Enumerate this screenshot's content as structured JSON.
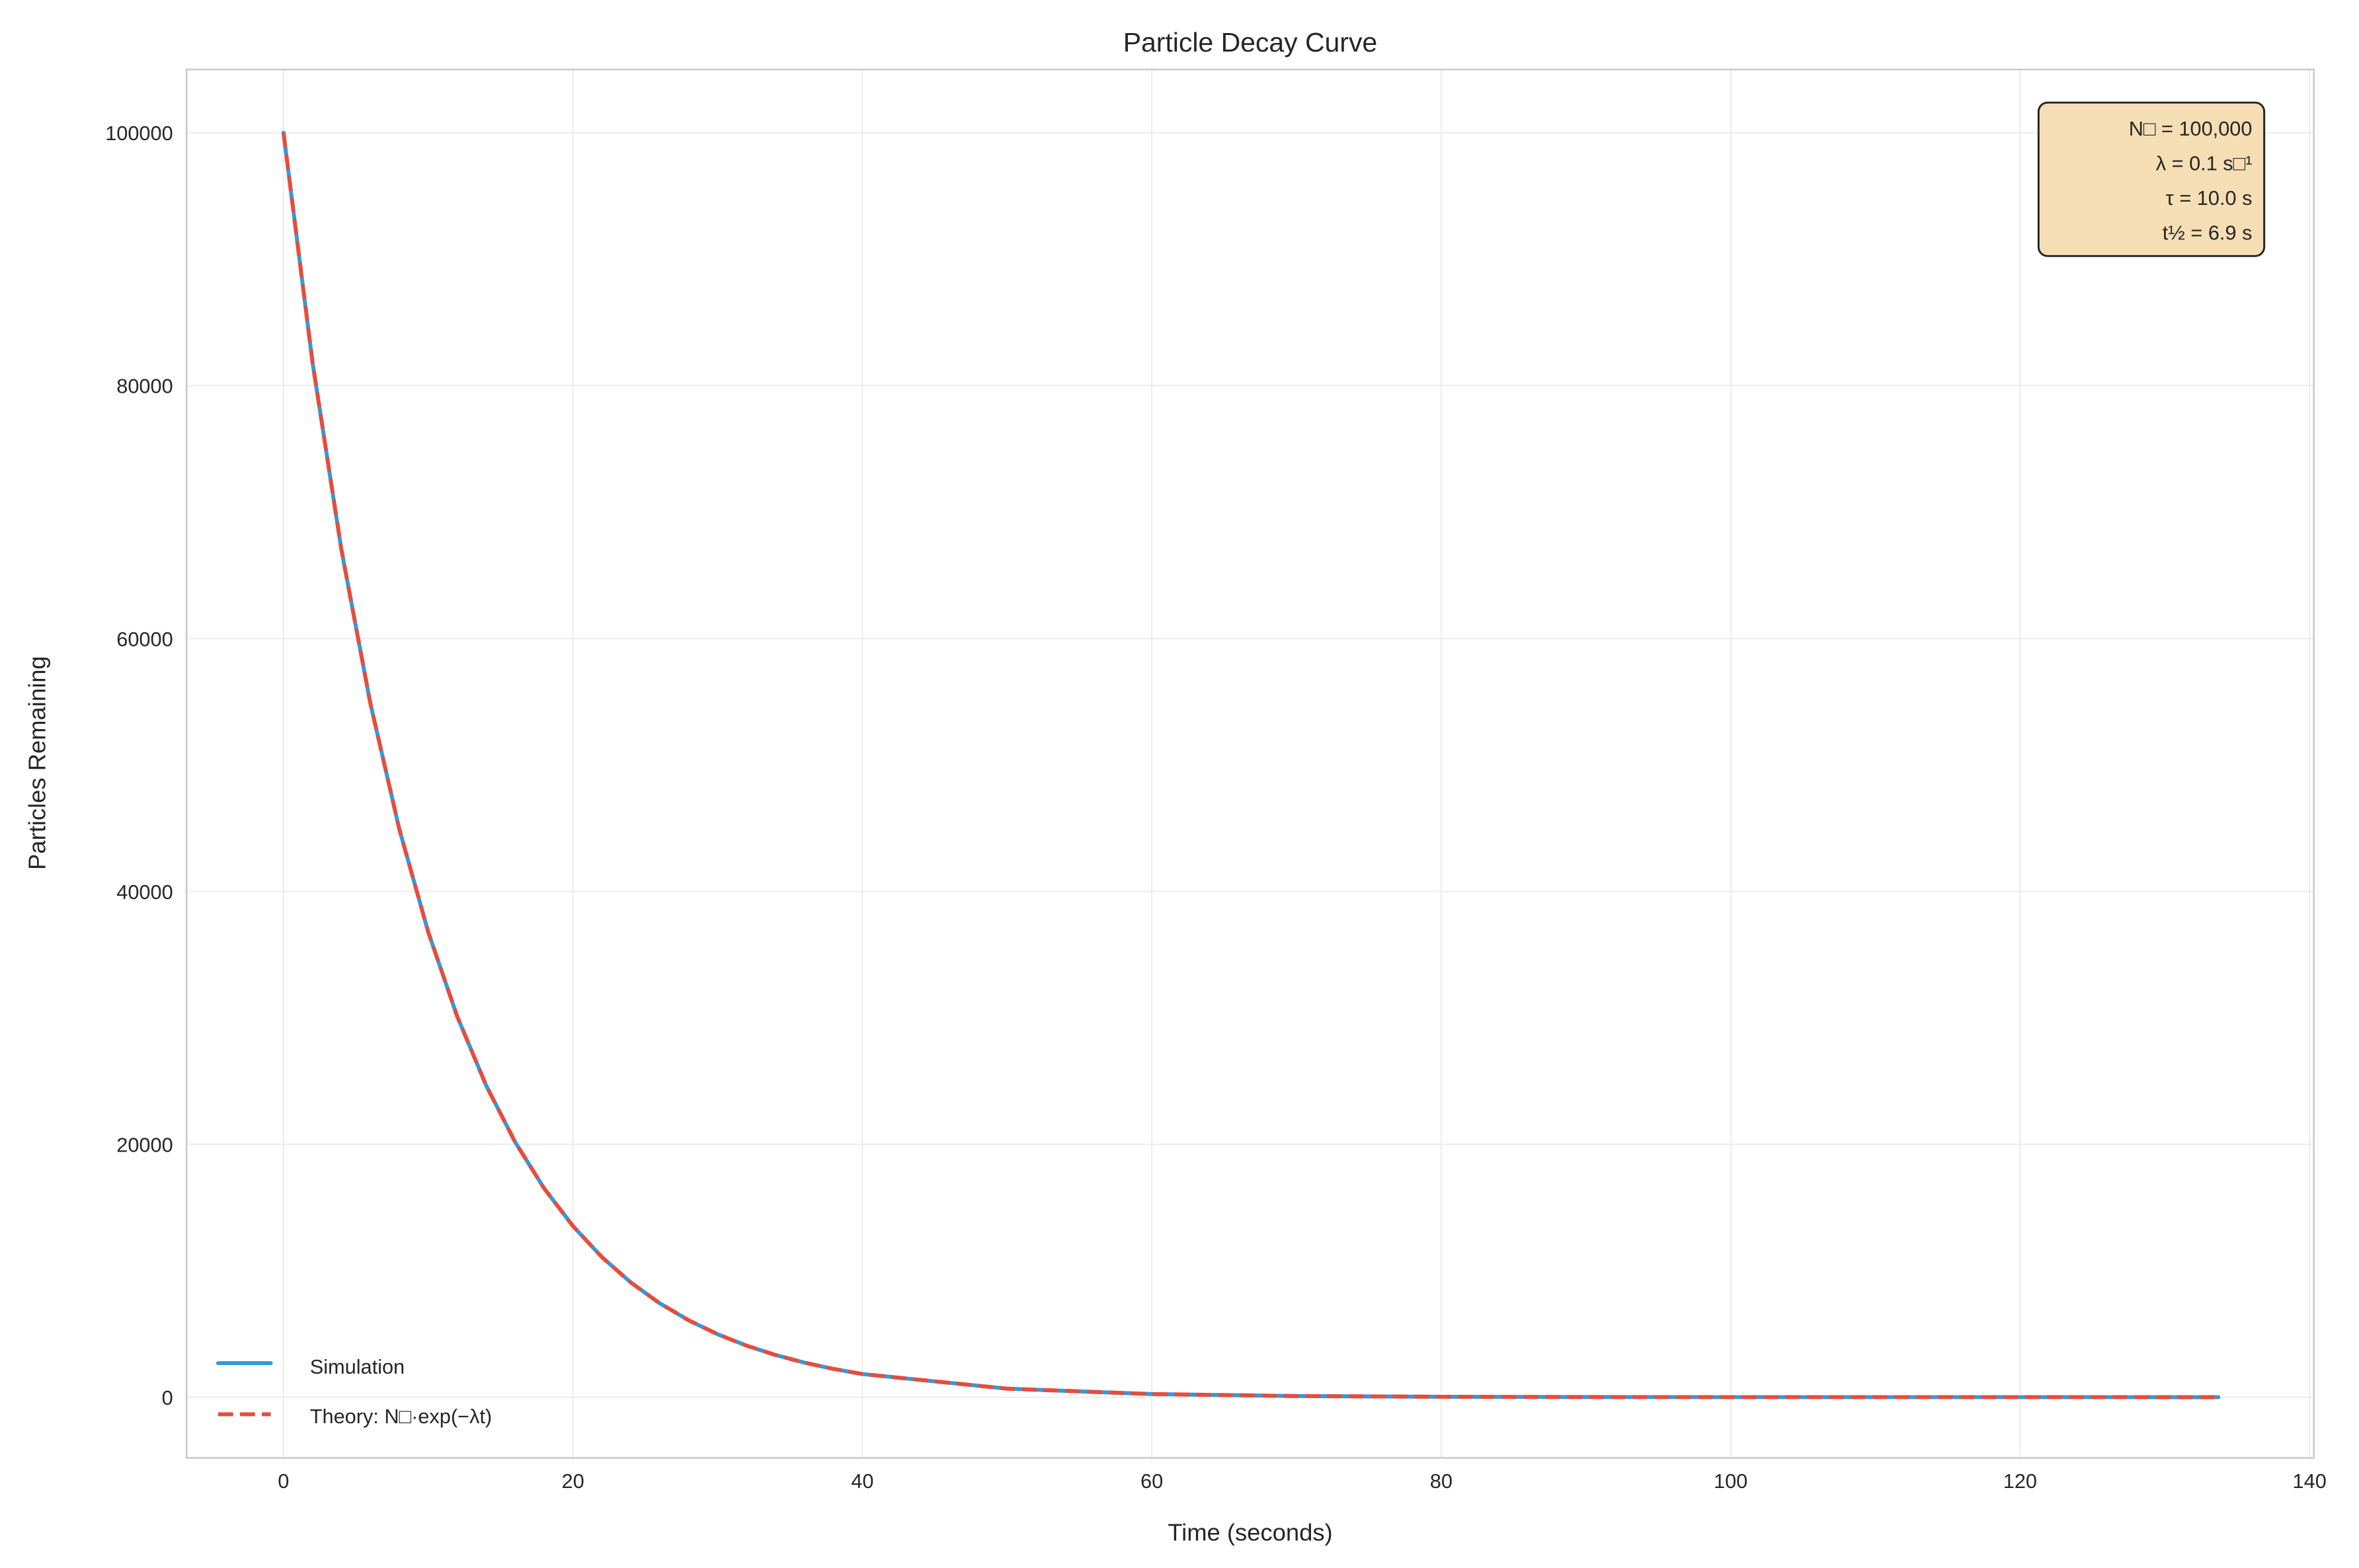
{
  "chart_data": {
    "type": "line",
    "title": "Particle Decay Curve",
    "xlabel": "Time (seconds)",
    "ylabel": "Particles Remaining",
    "xlim": [
      -6.7,
      140.3
    ],
    "ylim": [
      -4800,
      105000
    ],
    "xticks": [
      0,
      20,
      40,
      60,
      80,
      100,
      120,
      140
    ],
    "xtick_labels": [
      "0",
      "20",
      "40",
      "60",
      "80",
      "100",
      "120",
      "140"
    ],
    "yticks": [
      0,
      20000,
      40000,
      60000,
      80000,
      100000
    ],
    "ytick_labels": [
      "0",
      "20000",
      "40000",
      "60000",
      "80000",
      "100000"
    ],
    "grid": true,
    "x": [
      0,
      2,
      4,
      6,
      8,
      10,
      12,
      14,
      16,
      18,
      20,
      22,
      24,
      26,
      28,
      30,
      32,
      34,
      36,
      38,
      40,
      50,
      60,
      70,
      80,
      90,
      100,
      110,
      120,
      133.7
    ],
    "series": [
      {
        "name": "Simulation",
        "color": "#3498db",
        "style": "solid",
        "values": [
          100000,
          81873,
          67032,
          54881,
          44933,
          36788,
          30119,
          24660,
          20190,
          16530,
          13534,
          11080,
          9072,
          7427,
          6081,
          4979,
          4076,
          3337,
          2732,
          2237,
          1832,
          674,
          248,
          91,
          34,
          12,
          5,
          2,
          1,
          0
        ]
      },
      {
        "name": "Theory: N₀·exp(−λt)",
        "color": "#e74c3c",
        "style": "dashed",
        "values": [
          100000,
          81873,
          67032,
          54881,
          44933,
          36788,
          30119,
          24660,
          20190,
          16530,
          13534,
          11080,
          9072,
          7427,
          6081,
          4979,
          4076,
          3337,
          2732,
          2237,
          1832,
          674,
          248,
          91,
          34,
          12,
          5,
          2,
          1,
          0
        ]
      }
    ],
    "legend": {
      "placement": "lower-left",
      "entries": [
        "Simulation",
        "Theory: N□·exp(−λt)"
      ]
    },
    "annotation": {
      "placement": "top-right",
      "background": "#f5deb3",
      "lines": [
        "N□ = 100,000",
        "λ = 0.1 s□¹",
        "τ = 10.0 s",
        "t½ = 6.9 s"
      ]
    }
  }
}
